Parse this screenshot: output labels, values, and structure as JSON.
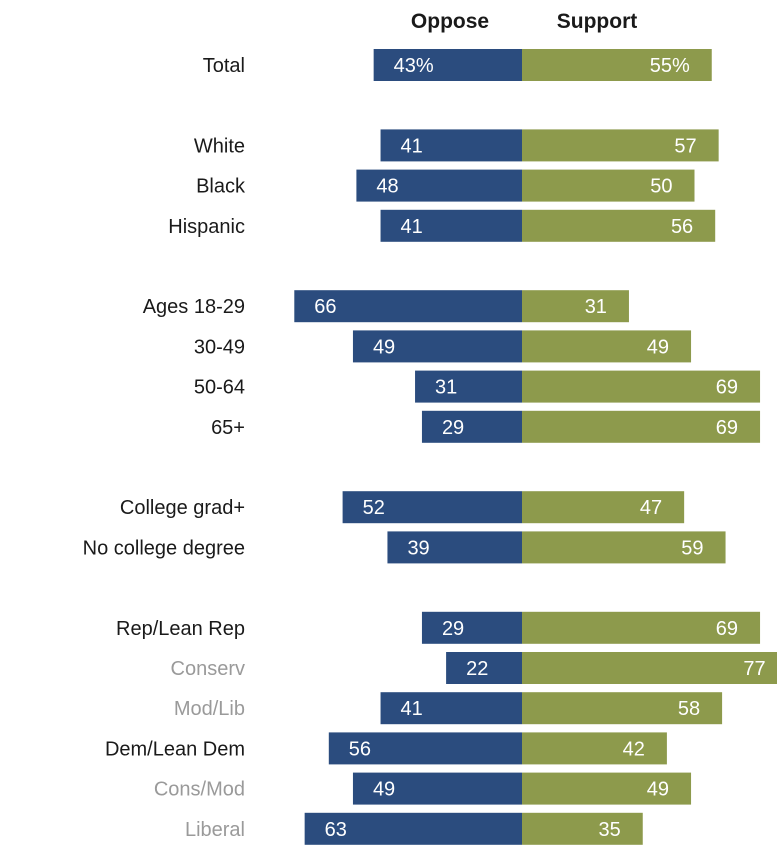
{
  "chart_data": {
    "type": "bar",
    "orientation": "diverging-horizontal",
    "series": [
      {
        "name": "Oppose",
        "color": "#2b4c7e"
      },
      {
        "name": "Support",
        "color": "#8d9a4c"
      }
    ],
    "headers": {
      "oppose": "Oppose",
      "support": "Support"
    },
    "rows": [
      {
        "label": "Total",
        "oppose": 43,
        "support": 55,
        "oppose_label": "43%",
        "support_label": "55%",
        "style": "main",
        "group": 0
      },
      {
        "label": "White",
        "oppose": 41,
        "support": 57,
        "oppose_label": "41",
        "support_label": "57",
        "style": "main",
        "group": 1
      },
      {
        "label": "Black",
        "oppose": 48,
        "support": 50,
        "oppose_label": "48",
        "support_label": "50",
        "style": "main",
        "group": 1
      },
      {
        "label": "Hispanic",
        "oppose": 41,
        "support": 56,
        "oppose_label": "41",
        "support_label": "56",
        "style": "main",
        "group": 1
      },
      {
        "label": "Ages 18-29",
        "oppose": 66,
        "support": 31,
        "oppose_label": "66",
        "support_label": "31",
        "style": "main",
        "group": 2
      },
      {
        "label": "30-49",
        "oppose": 49,
        "support": 49,
        "oppose_label": "49",
        "support_label": "49",
        "style": "main",
        "group": 2
      },
      {
        "label": "50-64",
        "oppose": 31,
        "support": 69,
        "oppose_label": "31",
        "support_label": "69",
        "style": "main",
        "group": 2
      },
      {
        "label": "65+",
        "oppose": 29,
        "support": 69,
        "oppose_label": "29",
        "support_label": "69",
        "style": "main",
        "group": 2
      },
      {
        "label": "College grad+",
        "oppose": 52,
        "support": 47,
        "oppose_label": "52",
        "support_label": "47",
        "style": "main",
        "group": 3
      },
      {
        "label": "No college degree",
        "oppose": 39,
        "support": 59,
        "oppose_label": "39",
        "support_label": "59",
        "style": "main",
        "group": 3
      },
      {
        "label": "Rep/Lean Rep",
        "oppose": 29,
        "support": 69,
        "oppose_label": "29",
        "support_label": "69",
        "style": "main",
        "group": 4
      },
      {
        "label": "Conserv",
        "oppose": 22,
        "support": 77,
        "oppose_label": "22",
        "support_label": "77",
        "style": "sub",
        "group": 4
      },
      {
        "label": "Mod/Lib",
        "oppose": 41,
        "support": 58,
        "oppose_label": "41",
        "support_label": "58",
        "style": "sub",
        "group": 4
      },
      {
        "label": "Dem/Lean Dem",
        "oppose": 56,
        "support": 42,
        "oppose_label": "56",
        "support_label": "42",
        "style": "main",
        "group": 4
      },
      {
        "label": "Cons/Mod",
        "oppose": 49,
        "support": 49,
        "oppose_label": "49",
        "support_label": "49",
        "style": "sub",
        "group": 4
      },
      {
        "label": "Liberal",
        "oppose": 63,
        "support": 35,
        "oppose_label": "63",
        "support_label": "35",
        "style": "sub",
        "group": 4
      }
    ],
    "colors": {
      "main_label": "#1a1a1a",
      "sub_label": "#9a9a9a"
    }
  }
}
